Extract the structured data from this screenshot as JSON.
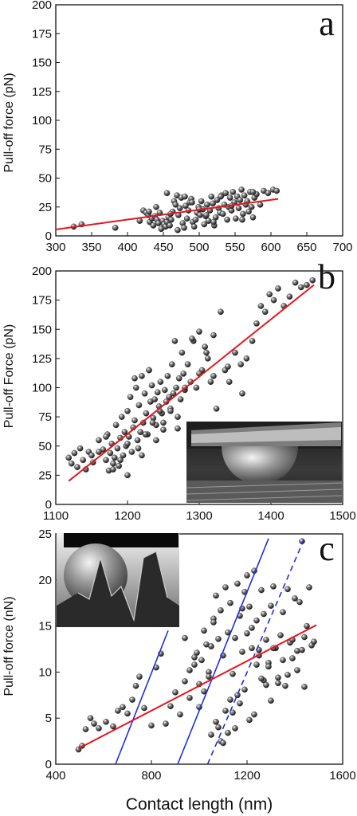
{
  "colors": {
    "fit_line": "#e8141c",
    "blue_line": "#1c2ee0",
    "marker": "#2a2a2a"
  },
  "chart_data": [
    {
      "type": "scatter",
      "panel_label": "a",
      "title": "",
      "xlabel": "",
      "ylabel": "Pull-off force  (pN)",
      "xlim": [
        300,
        700
      ],
      "ylim": [
        0,
        200
      ],
      "xticks": [
        "300",
        "350",
        "400",
        "450",
        "500",
        "550",
        "600",
        "650",
        "700"
      ],
      "yticks": [
        "0",
        "25",
        "50",
        "75",
        "100",
        "125",
        "150",
        "175",
        "200"
      ],
      "grid": false,
      "x": [
        325,
        336,
        383,
        417,
        422,
        426,
        429,
        431,
        434,
        436,
        438,
        441,
        443,
        445,
        447,
        449,
        451,
        453,
        455,
        457,
        459,
        461,
        463,
        465,
        467,
        469,
        471,
        473,
        475,
        477,
        479,
        481,
        483,
        485,
        487,
        489,
        491,
        493,
        495,
        497,
        499,
        501,
        503,
        505,
        507,
        509,
        511,
        513,
        515,
        517,
        519,
        521,
        523,
        525,
        527,
        529,
        531,
        533,
        535,
        537,
        539,
        541,
        543,
        545,
        547,
        549,
        551,
        553,
        555,
        557,
        559,
        561,
        563,
        565,
        567,
        569,
        571,
        573,
        575,
        577,
        580,
        585,
        590,
        596,
        603,
        608,
        530,
        500,
        470,
        440,
        460,
        480,
        520,
        545,
        560,
        575,
        490,
        510,
        455,
        430
      ],
      "y": [
        8,
        10,
        7,
        13,
        22,
        20,
        18,
        12,
        15,
        9,
        17,
        14,
        11,
        20,
        6,
        13,
        10,
        8,
        12,
        16,
        9,
        14,
        21,
        30,
        27,
        35,
        18,
        24,
        33,
        11,
        7,
        26,
        15,
        22,
        29,
        32,
        12,
        8,
        14,
        20,
        25,
        18,
        30,
        23,
        10,
        17,
        27,
        13,
        22,
        34,
        28,
        9,
        16,
        31,
        24,
        20,
        35,
        19,
        27,
        37,
        14,
        25,
        33,
        22,
        38,
        29,
        15,
        34,
        24,
        31,
        40,
        19,
        35,
        27,
        30,
        21,
        38,
        25,
        16,
        33,
        36,
        27,
        39,
        37,
        40,
        39,
        34,
        23,
        5,
        25,
        19,
        34,
        12,
        26,
        14,
        38,
        29,
        18,
        37,
        21
      ]
    },
    {
      "type": "scatter",
      "panel_label": "b",
      "title": "",
      "xlabel": "",
      "ylabel": "Pull-off Force  (pN)",
      "xlim": [
        1100,
        1500
      ],
      "ylim": [
        0,
        200
      ],
      "xticks": [
        "1100",
        "1200",
        "1300",
        "1400",
        "1500"
      ],
      "yticks": [
        "0",
        "25",
        "50",
        "75",
        "100",
        "125",
        "150",
        "175",
        "200"
      ],
      "grid": false,
      "x": [
        1118,
        1122,
        1126,
        1130,
        1134,
        1138,
        1142,
        1146,
        1150,
        1152,
        1160,
        1166,
        1170,
        1172,
        1174,
        1176,
        1178,
        1180,
        1182,
        1184,
        1186,
        1188,
        1190,
        1192,
        1194,
        1196,
        1198,
        1200,
        1202,
        1204,
        1206,
        1208,
        1210,
        1212,
        1214,
        1216,
        1218,
        1220,
        1222,
        1224,
        1226,
        1228,
        1230,
        1232,
        1234,
        1236,
        1238,
        1240,
        1242,
        1244,
        1246,
        1248,
        1250,
        1252,
        1254,
        1256,
        1258,
        1260,
        1262,
        1264,
        1266,
        1268,
        1270,
        1272,
        1274,
        1276,
        1278,
        1280,
        1284,
        1288,
        1292,
        1296,
        1300,
        1304,
        1308,
        1312,
        1316,
        1320,
        1324,
        1330,
        1336,
        1342,
        1350,
        1358,
        1366,
        1374,
        1380,
        1386,
        1392,
        1398,
        1404,
        1410,
        1418,
        1426,
        1434,
        1442,
        1450,
        1458,
        1180,
        1200,
        1220,
        1240,
        1250,
        1230,
        1210,
        1190,
        1170,
        1160,
        1260,
        1270,
        1290,
        1310,
        1300,
        1280,
        1320,
        1340,
        1360,
        1200,
        1215,
        1225,
        1235,
        1245
      ],
      "y": [
        40,
        35,
        44,
        32,
        48,
        38,
        30,
        45,
        42,
        36,
        55,
        47,
        38,
        60,
        29,
        44,
        52,
        35,
        40,
        68,
        48,
        33,
        57,
        75,
        42,
        62,
        50,
        80,
        58,
        92,
        45,
        66,
        72,
        100,
        55,
        85,
        62,
        110,
        70,
        95,
        78,
        60,
        115,
        88,
        102,
        74,
        90,
        68,
        96,
        84,
        105,
        78,
        70,
        98,
        88,
        110,
        92,
        82,
        120,
        95,
        140,
        100,
        75,
        108,
        90,
        130,
        112,
        98,
        120,
        105,
        140,
        100,
        148,
        115,
        135,
        125,
        105,
        145,
        82,
        165,
        115,
        105,
        130,
        120,
        125,
        140,
        155,
        170,
        165,
        180,
        175,
        185,
        170,
        178,
        190,
        186,
        188,
        192,
        30,
        25,
        42,
        55,
        64,
        115,
        108,
        38,
        58,
        45,
        80,
        65,
        142,
        130,
        112,
        100,
        110,
        118,
        95,
        52,
        48,
        60,
        70,
        80
      ]
    },
    {
      "type": "scatter",
      "panel_label": "c",
      "title": "",
      "xlabel": "Contact length (nm)",
      "ylabel": "Pull-off force (nN)",
      "xlim": [
        400,
        1600
      ],
      "ylim": [
        0,
        25
      ],
      "xticks": [
        "400",
        "800",
        "1200",
        "1600"
      ],
      "yticks": [
        "0",
        "5",
        "10",
        "15",
        "20",
        "25"
      ],
      "grid": false,
      "x": [
        495,
        510,
        525,
        545,
        560,
        580,
        610,
        640,
        660,
        680,
        700,
        720,
        735,
        750,
        770,
        800,
        820,
        840,
        860,
        880,
        900,
        920,
        940,
        960,
        980,
        990,
        1000,
        1010,
        1020,
        1030,
        1040,
        1050,
        1060,
        1070,
        1080,
        1090,
        1100,
        1110,
        1120,
        1130,
        1140,
        1150,
        1160,
        1170,
        1180,
        1190,
        1200,
        1210,
        1220,
        1230,
        1240,
        1250,
        1260,
        1270,
        1280,
        1290,
        1300,
        1310,
        1320,
        1330,
        1340,
        1350,
        1360,
        1370,
        1380,
        1390,
        1400,
        1410,
        1420,
        1430,
        1440,
        1450,
        1460,
        1470,
        1480,
        1050,
        1070,
        1090,
        1110,
        1130,
        1150,
        1170,
        1190,
        1210,
        1230,
        1100,
        1120,
        1140,
        1160,
        1080,
        1250,
        1270,
        1290,
        1310,
        1330,
        1350,
        1370,
        1390,
        1410,
        1430,
        1440,
        1000,
        1020,
        1040,
        980,
        960,
        940,
        1060,
        1180,
        1200,
        1220,
        1240,
        1260,
        1280,
        1300
      ],
      "y": [
        1.6,
        2.0,
        3.8,
        5.0,
        4.4,
        3.9,
        4.6,
        4.1,
        5.8,
        6.2,
        5.5,
        7.0,
        8.5,
        9.5,
        6.1,
        4.2,
        10.5,
        12.0,
        4.4,
        6.3,
        7.8,
        5.4,
        9.0,
        7.2,
        10.8,
        12.1,
        8.7,
        11.3,
        14.5,
        13.0,
        10.0,
        12.8,
        15.8,
        18.3,
        13.6,
        16.7,
        11.8,
        19.2,
        14.3,
        17.5,
        9.8,
        13.7,
        19.6,
        16.1,
        12.2,
        18.7,
        20.5,
        17.1,
        14.8,
        21.0,
        15.6,
        12.4,
        18.9,
        16.3,
        13.5,
        11.0,
        17.2,
        19.3,
        12.6,
        9.4,
        14.0,
        16.5,
        8.5,
        19.0,
        13.2,
        11.5,
        18.0,
        12.3,
        17.6,
        24.2,
        13.8,
        15.0,
        19.2,
        12.9,
        13.3,
        3.2,
        4.6,
        2.5,
        5.8,
        7.0,
        3.9,
        6.6,
        8.1,
        4.8,
        5.4,
        2.3,
        3.4,
        5.6,
        7.5,
        4.0,
        11.8,
        9.1,
        10.6,
        12.6,
        8.8,
        11.3,
        9.7,
        13.5,
        10.2,
        12.4,
        8.4,
        6.2,
        7.9,
        9.5,
        11.6,
        10.2,
        13.7,
        15.4,
        16.9,
        14.2,
        12.6,
        10.8,
        9.3,
        8.6,
        6.9
      ]
    }
  ]
}
